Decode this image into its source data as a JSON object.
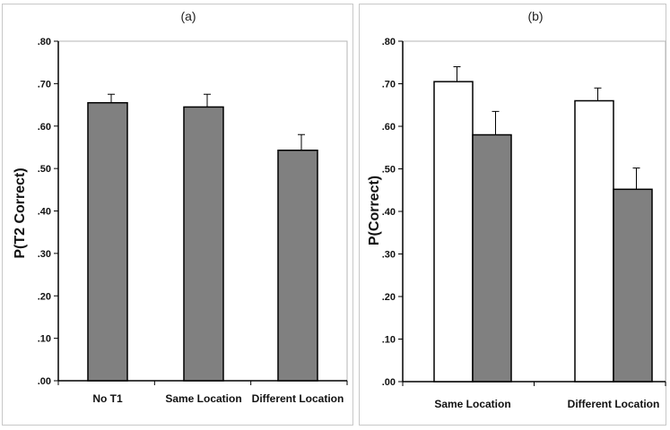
{
  "chart_data": [
    {
      "panel_label": "(a)",
      "type": "bar",
      "ylabel": "P(T2 Correct)",
      "ylim": [
        0,
        0.8
      ],
      "yticks": [
        ".00",
        ".10",
        ".20",
        ".30",
        ".40",
        ".50",
        ".60",
        ".70",
        ".80"
      ],
      "categories": [
        "No T1",
        "Same Location",
        "Different Location"
      ],
      "series": [
        {
          "values": [
            0.655,
            0.645,
            0.543
          ],
          "errors": [
            0.02,
            0.03,
            0.037
          ],
          "color": "#808080"
        }
      ]
    },
    {
      "panel_label": "(b)",
      "type": "bar",
      "ylabel": "P(Correct)",
      "ylim": [
        0,
        0.8
      ],
      "yticks": [
        ".00",
        ".10",
        ".20",
        ".30",
        ".40",
        ".50",
        ".60",
        ".70",
        ".80"
      ],
      "categories": [
        "Same Location",
        "Different Location"
      ],
      "series": [
        {
          "values": [
            0.705,
            0.66
          ],
          "errors": [
            0.035,
            0.03
          ],
          "color": "#ffffff"
        },
        {
          "values": [
            0.58,
            0.452
          ],
          "errors": [
            0.055,
            0.05
          ],
          "color": "#808080"
        }
      ]
    }
  ]
}
